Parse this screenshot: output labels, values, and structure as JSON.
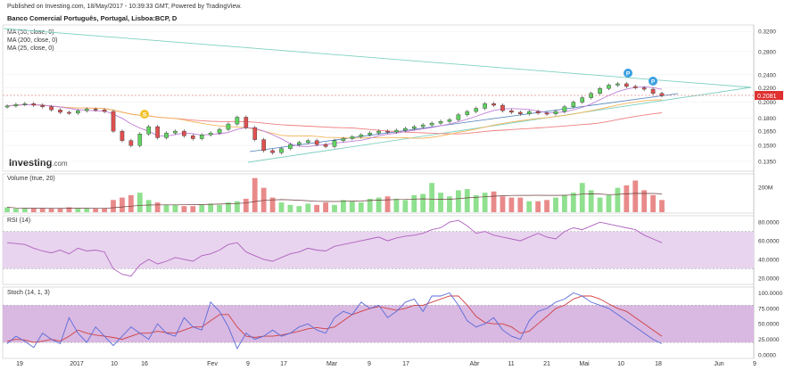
{
  "header": {
    "published": "Published on Investing.com, 18/May/2017 - 10:39:33 GMT, Powered by TradingView.",
    "title": "Banco Comercial Português, Portugal, Lisboa:BCP, D"
  },
  "legend": {
    "ma50": "MA (50, close, 0)",
    "ma200": "MA (200, close, 0)",
    "ma25": "MA (25, close, 0)"
  },
  "logo": {
    "main": "Investing",
    "suffix": ".com"
  },
  "price_badge": "0.2081",
  "panels": {
    "volume_label": "Volume (true, 20)",
    "rsi_label": "RSI (14)",
    "stoch_label": "Stoch (14, 1, 3)"
  },
  "colors": {
    "up": "#5fd35f",
    "down": "#e05050",
    "ma50": "#c080d8",
    "ma200": "#f08080",
    "ma25": "#f4b55a",
    "trend_upper": "#7fd0c0",
    "trend_lower": "#4d7fb8",
    "rsi": "#b060c0",
    "stoch_k": "#5a6cd8",
    "stoch_d": "#d04040",
    "band": "#e6d0ec"
  },
  "chart_data": {
    "type": "candlestick",
    "price_axis": {
      "ticks": [
        "0.3200",
        "0.2800",
        "0.2400",
        "0.2200",
        "0.2000",
        "0.1800",
        "0.1650",
        "0.1500",
        "0.1350"
      ],
      "ylim": [
        0.128,
        0.33
      ]
    },
    "volume_axis": {
      "ticks": [
        "200M"
      ]
    },
    "rsi_axis": {
      "ticks": [
        "80.0000",
        "60.0000",
        "40.0000",
        "20.0000"
      ],
      "ylim": [
        15,
        85
      ]
    },
    "stoch_axis": {
      "ticks": [
        "100.0000",
        "75.0000",
        "50.0000",
        "25.0000",
        "0.0000"
      ],
      "ylim": [
        0,
        105
      ]
    },
    "x_ticks": [
      "19",
      "2017",
      "10",
      "16",
      "Fev",
      "9",
      "17",
      "Mar",
      "9",
      "17",
      "Abr",
      "11",
      "21",
      "Mai",
      "10",
      "18",
      "Jun",
      "9"
    ],
    "events": [
      "S",
      "P",
      "P"
    ],
    "close": [
      0.195,
      0.197,
      0.198,
      0.196,
      0.194,
      0.19,
      0.187,
      0.186,
      0.189,
      0.191,
      0.19,
      0.188,
      0.165,
      0.155,
      0.15,
      0.162,
      0.17,
      0.158,
      0.163,
      0.165,
      0.16,
      0.157,
      0.161,
      0.163,
      0.167,
      0.173,
      0.181,
      0.169,
      0.156,
      0.145,
      0.143,
      0.147,
      0.151,
      0.153,
      0.155,
      0.151,
      0.149,
      0.155,
      0.157,
      0.159,
      0.161,
      0.163,
      0.165,
      0.164,
      0.166,
      0.168,
      0.17,
      0.172,
      0.174,
      0.176,
      0.178,
      0.184,
      0.188,
      0.192,
      0.198,
      0.196,
      0.189,
      0.187,
      0.185,
      0.188,
      0.186,
      0.185,
      0.188,
      0.194,
      0.2,
      0.206,
      0.212,
      0.219,
      0.224,
      0.226,
      0.222,
      0.22,
      0.218,
      0.212,
      0.209
    ],
    "volume": [
      4,
      3,
      3,
      3,
      3,
      3,
      3,
      4,
      3,
      3,
      3,
      3,
      10,
      12,
      14,
      16,
      10,
      8,
      6,
      6,
      5,
      5,
      6,
      7,
      6,
      8,
      9,
      11,
      28,
      20,
      12,
      8,
      6,
      5,
      7,
      6,
      8,
      6,
      10,
      9,
      8,
      11,
      12,
      13,
      11,
      10,
      14,
      15,
      24,
      16,
      13,
      18,
      19,
      14,
      16,
      17,
      13,
      12,
      12,
      9,
      9,
      10,
      12,
      14,
      16,
      24,
      18,
      12,
      14,
      20,
      22,
      26,
      18,
      14,
      10
    ],
    "rsi": [
      58,
      57,
      56,
      52,
      49,
      47,
      50,
      46,
      52,
      49,
      50,
      48,
      30,
      24,
      22,
      34,
      40,
      35,
      38,
      42,
      40,
      38,
      44,
      46,
      50,
      56,
      58,
      48,
      44,
      40,
      38,
      42,
      46,
      48,
      52,
      50,
      49,
      54,
      56,
      58,
      60,
      62,
      64,
      60,
      63,
      65,
      66,
      68,
      72,
      74,
      80,
      82,
      76,
      68,
      70,
      66,
      64,
      62,
      60,
      64,
      68,
      64,
      62,
      70,
      74,
      72,
      76,
      80,
      78,
      76,
      74,
      72,
      66,
      62,
      58
    ],
    "stoch_k": [
      18,
      30,
      22,
      12,
      35,
      25,
      18,
      60,
      35,
      20,
      45,
      30,
      15,
      30,
      45,
      35,
      25,
      50,
      35,
      30,
      60,
      45,
      40,
      85,
      70,
      45,
      10,
      35,
      25,
      30,
      40,
      30,
      35,
      45,
      50,
      40,
      35,
      60,
      70,
      65,
      85,
      75,
      80,
      60,
      70,
      85,
      90,
      70,
      95,
      95,
      100,
      80,
      55,
      45,
      50,
      60,
      40,
      30,
      25,
      55,
      70,
      75,
      85,
      90,
      100,
      95,
      85,
      80,
      75,
      65,
      55,
      45,
      35,
      25,
      18
    ],
    "stoch_d": [
      22,
      25,
      24,
      20,
      22,
      25,
      22,
      30,
      40,
      35,
      32,
      30,
      28,
      25,
      30,
      35,
      35,
      38,
      36,
      35,
      40,
      45,
      45,
      55,
      65,
      65,
      45,
      30,
      28,
      30,
      30,
      32,
      35,
      38,
      42,
      44,
      42,
      45,
      55,
      65,
      70,
      75,
      78,
      75,
      72,
      75,
      80,
      80,
      85,
      90,
      95,
      95,
      80,
      62,
      52,
      50,
      50,
      45,
      35,
      38,
      50,
      62,
      75,
      80,
      90,
      95,
      95,
      90,
      82,
      75,
      70,
      60,
      50,
      40,
      30
    ]
  }
}
